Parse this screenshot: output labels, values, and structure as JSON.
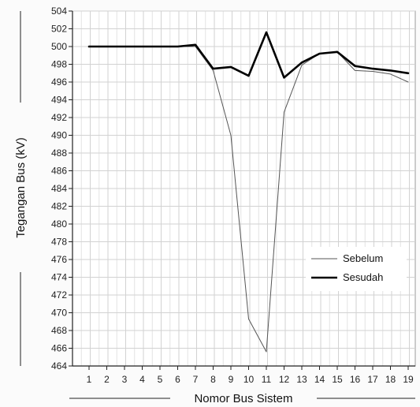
{
  "chart_data": {
    "type": "line",
    "xlabel": "Nomor Bus Sistem",
    "ylabel": "Tegangan Bus (kV)",
    "x": [
      1,
      2,
      3,
      4,
      5,
      6,
      7,
      8,
      9,
      10,
      11,
      12,
      13,
      14,
      15,
      16,
      17,
      18,
      19
    ],
    "xlim": [
      1,
      19
    ],
    "ylim": [
      464,
      504
    ],
    "ytick_step": 2,
    "grid": true,
    "legend_position": "bottom-right",
    "series": [
      {
        "name": "Sebelum",
        "color": "#555555",
        "line_style": "thin",
        "values": [
          500,
          500,
          500,
          500,
          500,
          500,
          500,
          497.3,
          490,
          469.3,
          465.6,
          492.6,
          497.9,
          499.2,
          499.4,
          497.3,
          497.2,
          496.9,
          496
        ]
      },
      {
        "name": "Sesudah",
        "color": "#000000",
        "line_style": "thick",
        "values": [
          500,
          500,
          500,
          500,
          500,
          500,
          500.2,
          497.5,
          497.7,
          496.7,
          501.6,
          496.5,
          498.2,
          499.2,
          499.4,
          497.8,
          497.5,
          497.3,
          497
        ]
      }
    ]
  }
}
